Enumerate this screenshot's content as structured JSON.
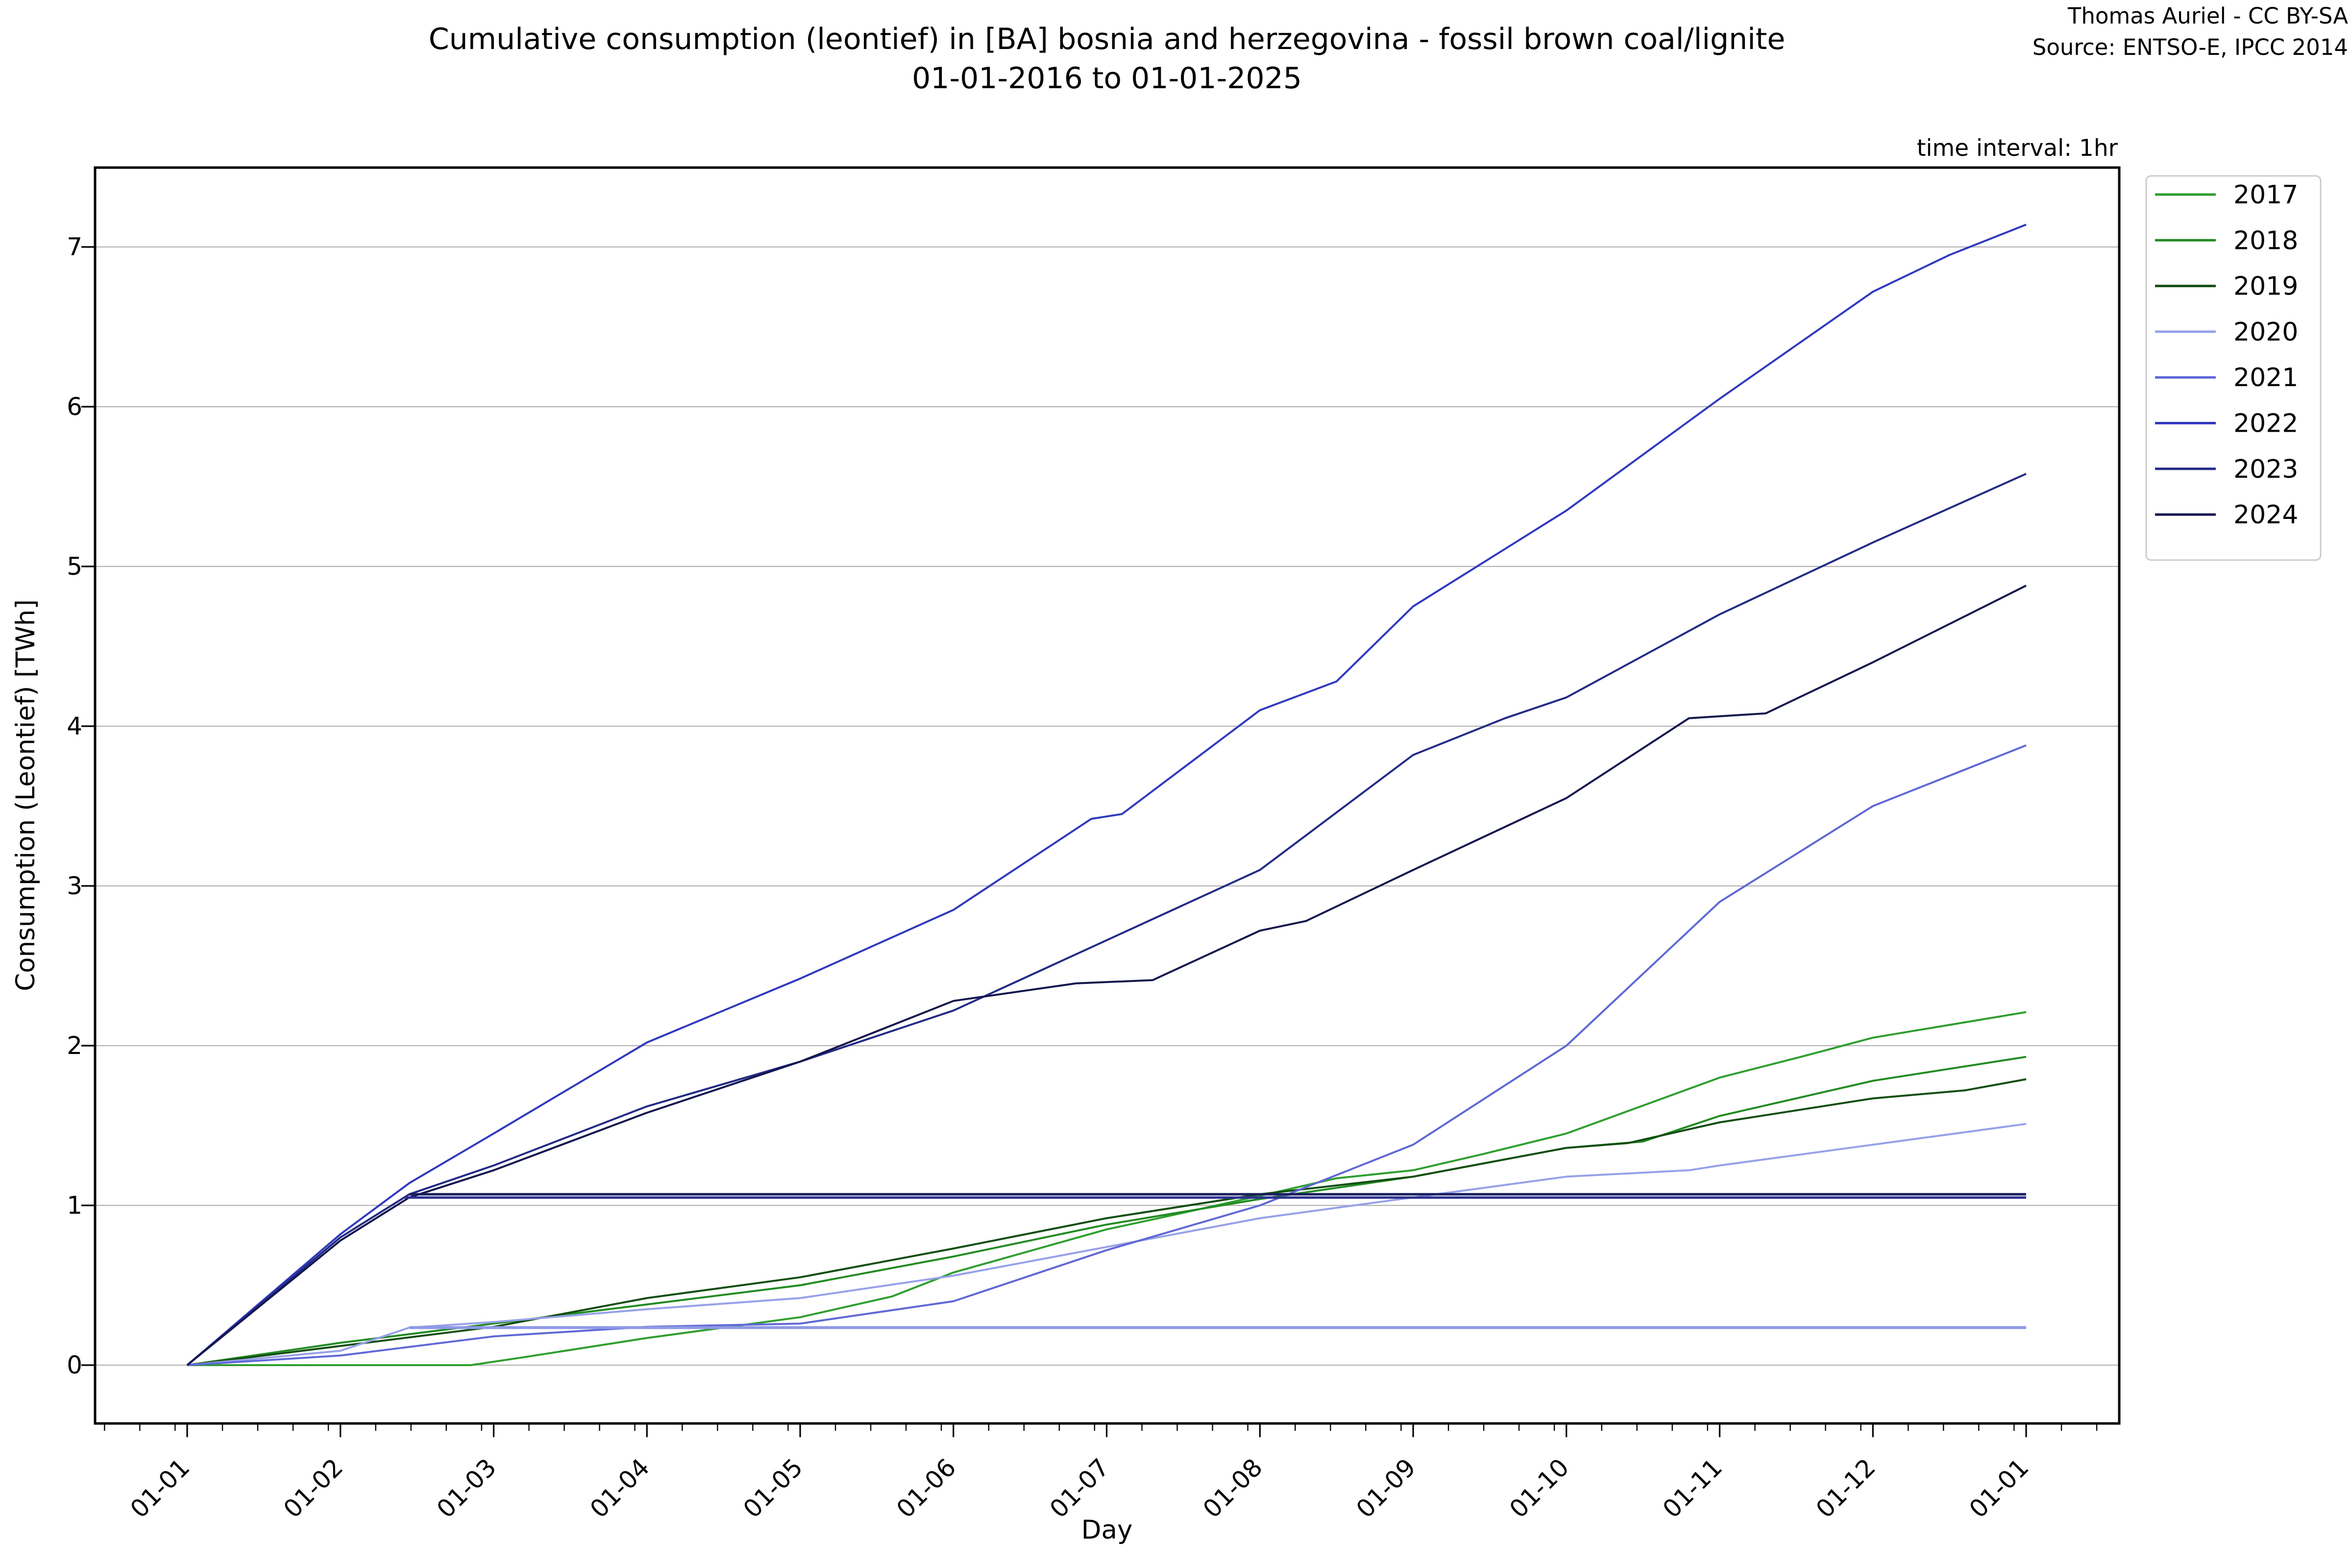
{
  "meta": {
    "credit": "Thomas Auriel - CC BY-SA",
    "source": "Source: ENTSO-E, IPCC 2014",
    "time_interval": "time interval: 1hr"
  },
  "chart_data": {
    "type": "line",
    "title": "Cumulative consumption (leontief) in [BA] bosnia and herzegovina - fossil brown coal/lignite",
    "subtitle": "01-01-2016 to 01-01-2025",
    "xlabel": "Day",
    "ylabel": "Consumption (Leontief) [TWh]",
    "x_unit_note": "x measured in months after Jan 1; axis labelled by month-day dates",
    "x_tick_positions": [
      0,
      1,
      2,
      3,
      4,
      5,
      6,
      7,
      8,
      9,
      10,
      11,
      12
    ],
    "x_tick_labels": [
      "01-01",
      "01-02",
      "01-03",
      "01-04",
      "01-05",
      "01-06",
      "01-07",
      "01-08",
      "01-09",
      "01-10",
      "01-11",
      "01-12",
      "01-01"
    ],
    "y_ticks": [
      0,
      1,
      2,
      3,
      4,
      5,
      6,
      7
    ],
    "ylim": [
      -0.37,
      7.5
    ],
    "xlim": [
      -0.6,
      12.61
    ],
    "grid": "horizontal-only",
    "grid_color": "#b4b4b4",
    "legend_position": "outside-upper-right",
    "series": [
      {
        "name": "2017",
        "color": "#2E9E2E",
        "points": [
          [
            0,
            0
          ],
          [
            1,
            0
          ],
          [
            1.85,
            0
          ],
          [
            2.2,
            0.05
          ],
          [
            3,
            0.17
          ],
          [
            4,
            0.3
          ],
          [
            4.6,
            0.43
          ],
          [
            5,
            0.58
          ],
          [
            6,
            0.85
          ],
          [
            6.34,
            0.92
          ],
          [
            7,
            1.06
          ],
          [
            7.5,
            1.17
          ],
          [
            8,
            1.22
          ],
          [
            8.45,
            1.32
          ],
          [
            9,
            1.45
          ],
          [
            10,
            1.8
          ],
          [
            10.57,
            1.94
          ],
          [
            11,
            2.05
          ],
          [
            12,
            2.21
          ]
        ]
      },
      {
        "name": "2018",
        "color": "#228B22",
        "points": [
          [
            0,
            0
          ],
          [
            1,
            0.14
          ],
          [
            2,
            0.26
          ],
          [
            3,
            0.38
          ],
          [
            4,
            0.5
          ],
          [
            5,
            0.68
          ],
          [
            6,
            0.88
          ],
          [
            7,
            1.04
          ],
          [
            8,
            1.18
          ],
          [
            9,
            1.36
          ],
          [
            9.5,
            1.4
          ],
          [
            10,
            1.56
          ],
          [
            11,
            1.78
          ],
          [
            12,
            1.93
          ]
        ]
      },
      {
        "name": "2019",
        "color": "#124E12",
        "points": [
          [
            0,
            0
          ],
          [
            1,
            0.12
          ],
          [
            2,
            0.24
          ],
          [
            3,
            0.42
          ],
          [
            4,
            0.55
          ],
          [
            5,
            0.73
          ],
          [
            6,
            0.92
          ],
          [
            7,
            1.07
          ],
          [
            8,
            1.18
          ],
          [
            9,
            1.36
          ],
          [
            9.4,
            1.39
          ],
          [
            10,
            1.52
          ],
          [
            11,
            1.67
          ],
          [
            11.6,
            1.72
          ],
          [
            12,
            1.79
          ]
        ]
      },
      {
        "name": "2020",
        "color": "#97A1E8",
        "points": [
          [
            0,
            0
          ],
          [
            1,
            0.09
          ],
          [
            1.45,
            0.235
          ],
          [
            2,
            0.27
          ],
          [
            3,
            0.35
          ],
          [
            4,
            0.42
          ],
          [
            5,
            0.56
          ],
          [
            6,
            0.74
          ],
          [
            7,
            0.92
          ],
          [
            8,
            1.05
          ],
          [
            9,
            1.18
          ],
          [
            9.8,
            1.22
          ],
          [
            10,
            1.25
          ],
          [
            11,
            1.38
          ],
          [
            12,
            1.51
          ]
        ]
      },
      {
        "name": "2021",
        "color": "#5F68D6",
        "points": [
          [
            0,
            0
          ],
          [
            1,
            0.06
          ],
          [
            2,
            0.18
          ],
          [
            3,
            0.24
          ],
          [
            4,
            0.26
          ],
          [
            5,
            0.4
          ],
          [
            6,
            0.72
          ],
          [
            7,
            1.0
          ],
          [
            8,
            1.38
          ],
          [
            9,
            2.0
          ],
          [
            10,
            2.9
          ],
          [
            11,
            3.5
          ],
          [
            12,
            3.88
          ]
        ]
      },
      {
        "name": "2022",
        "color": "#3039BE",
        "points": [
          [
            0,
            0
          ],
          [
            1,
            0.82
          ],
          [
            1.45,
            1.14
          ],
          [
            2,
            1.45
          ],
          [
            3,
            2.02
          ],
          [
            4,
            2.42
          ],
          [
            5,
            2.85
          ],
          [
            5.9,
            3.42
          ],
          [
            6.1,
            3.45
          ],
          [
            7,
            4.1
          ],
          [
            7.5,
            4.28
          ],
          [
            8,
            4.75
          ],
          [
            9,
            5.35
          ],
          [
            10,
            6.05
          ],
          [
            11,
            6.72
          ],
          [
            11.5,
            6.95
          ],
          [
            12,
            7.14
          ]
        ]
      },
      {
        "name": "2023",
        "color": "#232A85",
        "points": [
          [
            0,
            0
          ],
          [
            1,
            0.8
          ],
          [
            1.45,
            1.07
          ],
          [
            2,
            1.25
          ],
          [
            3,
            1.62
          ],
          [
            4,
            1.9
          ],
          [
            5,
            2.22
          ],
          [
            6,
            2.66
          ],
          [
            7,
            3.1
          ],
          [
            8,
            3.82
          ],
          [
            8.6,
            4.05
          ],
          [
            9,
            4.18
          ],
          [
            10,
            4.7
          ],
          [
            11,
            5.15
          ],
          [
            12,
            5.58
          ]
        ]
      },
      {
        "name": "2024",
        "color": "#13154D",
        "points": [
          [
            0,
            0
          ],
          [
            1,
            0.78
          ],
          [
            1.45,
            1.05
          ],
          [
            2,
            1.22
          ],
          [
            3,
            1.58
          ],
          [
            4,
            1.9
          ],
          [
            5,
            2.28
          ],
          [
            5.8,
            2.39
          ],
          [
            6.3,
            2.41
          ],
          [
            7,
            2.72
          ],
          [
            7.3,
            2.78
          ],
          [
            8,
            3.1
          ],
          [
            9,
            3.55
          ],
          [
            9.8,
            4.05
          ],
          [
            10.3,
            4.08
          ],
          [
            11,
            4.4
          ],
          [
            12,
            4.88
          ]
        ]
      }
    ],
    "unlabeled_series": [
      {
        "name": "flat-navy-dark",
        "color": "#1A1E5F",
        "width": 5,
        "points": [
          [
            1.45,
            1.07
          ],
          [
            12,
            1.07
          ]
        ]
      },
      {
        "name": "flat-navy",
        "color": "#2B3290",
        "width": 5,
        "points": [
          [
            1.42,
            1.049
          ],
          [
            12,
            1.049
          ]
        ]
      },
      {
        "name": "flat-periwinkle",
        "color": "#8F99E6",
        "width": 6,
        "points": [
          [
            1.45,
            0.235
          ],
          [
            12,
            0.235
          ]
        ]
      }
    ],
    "legend_entries": [
      "2017",
      "2018",
      "2019",
      "2020",
      "2021",
      "2022",
      "2023",
      "2024"
    ]
  }
}
